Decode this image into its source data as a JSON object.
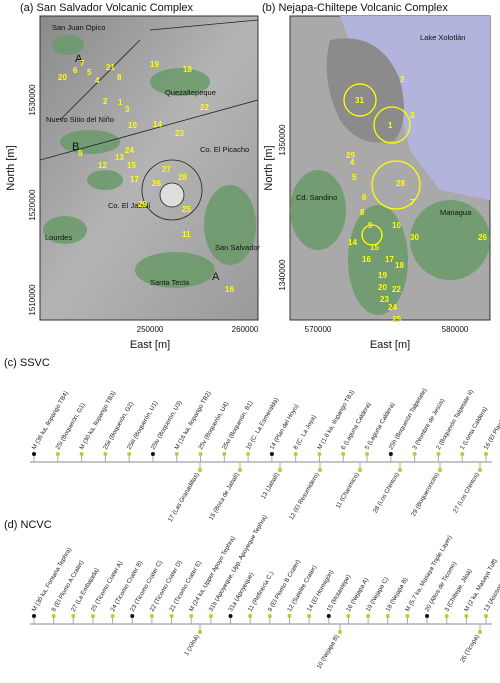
{
  "panel_a": {
    "title": "(a) San Salvador Volcanic Complex",
    "x_label": "East [m]",
    "y_label": "North [m]",
    "xticks": [
      "250000",
      "260000"
    ],
    "yticks": [
      "1510000",
      "1520000",
      "1530000"
    ],
    "places": [
      "San Juan Opico",
      "Quezaltepeque",
      "Nuevo Sitio del Niño",
      "Lourdes",
      "Co. El Jabalí",
      "Co. El Picacho",
      "San Salvador",
      "Santa Tecla"
    ],
    "markers": [
      "A",
      "B",
      "A"
    ],
    "vents": [
      "20",
      "6",
      "7",
      "5",
      "4",
      "21",
      "8",
      "19",
      "18",
      "22",
      "2",
      "1",
      "3",
      "10",
      "14",
      "23",
      "9",
      "12",
      "24",
      "15",
      "13",
      "17",
      "27",
      "26",
      "28",
      "29",
      "25",
      "11",
      "16"
    ]
  },
  "panel_b": {
    "title": "(b) Nejapa-Chiltepe Volcanic Complex",
    "x_label": "East [m]",
    "y_label": "North [m]",
    "xticks": [
      "570000",
      "580000"
    ],
    "yticks": [
      "1340000",
      "1350000"
    ],
    "places": [
      "Lake Xolotlán",
      "Cd. Sandino",
      "Managua"
    ],
    "vents": [
      "31",
      "2",
      "3",
      "1",
      "29",
      "28",
      "4",
      "5",
      "7",
      "6",
      "8",
      "9",
      "10",
      "30",
      "26",
      "14",
      "15",
      "16",
      "17",
      "19",
      "18",
      "20",
      "22",
      "23",
      "24",
      "25"
    ]
  },
  "panel_c": {
    "title": "(c) SSVC",
    "top_labels": [
      "M (36 ka, Ilopango TB4)",
      "25i (Boquerón, G1)",
      "M (30 ka, Ilopango TB3)",
      "25ii (Boquerón, G2)",
      "25iii (Boquerón, U1)",
      "25iv (Boquerón, U3)",
      "M (16 ka, Ilopango TB2)",
      "25v (Boquerón, U4)",
      "25vi (Boquerón, B1)",
      "10 (C. La Esmeralda)",
      "14 (Plan del Hoyo)",
      "8 (C. La Joya)",
      "M (1.6 ka, Ilopango TBJ)",
      "6 (Laguna Caldera)",
      "5 (Laguna Caldera)",
      "25h (Boquerón Talpetate)",
      "3 (Nombre de Jesús)",
      "2 (Boquerón Talpetate II)",
      "1 (Loma Caldera)",
      "16 (El Playón)"
    ],
    "bottom_labels": [
      "17 (Las Granadillas)",
      "15 (Boca de Jabalí)",
      "13 (Jabalí)",
      "12 (El Resumidero)",
      "11 (Chanmico)",
      "28 (Los Chintos)",
      "29 (Boqueroncito)",
      "27 (Los Chintos)"
    ]
  },
  "panel_d": {
    "title": "(d) NCVC",
    "top_labels": [
      "M (30 ka, Fontana Tephra)",
      "8 (El Plomo A Crater)",
      "27 (La Embajada)",
      "25 (Ticomo Crater A)",
      "24 (Ticomo Crater B)",
      "23 (Ticomo Crater C)",
      "22 (Ticomo Crater D)",
      "21 (Ticomo Crater E)",
      "M (24 ka, Upper Apoyo Tephra)",
      "31b (Apoyeque, Upp. Apoyeque Tephra)",
      "31a (Apoyeque)",
      "11 (Refinería C.)",
      "9 (El Plomo B Crater)",
      "12 (Satelite Crater)",
      "14 (El Hormigón)",
      "15 (Motastepe)",
      "16 (Nejapa A)",
      "19 (Nejapa C)",
      "18 (Nejapa B)",
      "M (5.7 ka, Masaya Triple Layer)",
      "20 (Altos de Ticomo)",
      "3 (Chiltepe, Jiloá)",
      "M (2 ka, Masaya Tuff)",
      "13 (Asososca)"
    ],
    "bottom_labels": [
      "1 (Xiloá)",
      "10 (Nejapa B)",
      "26 (Ticopa)"
    ]
  }
}
